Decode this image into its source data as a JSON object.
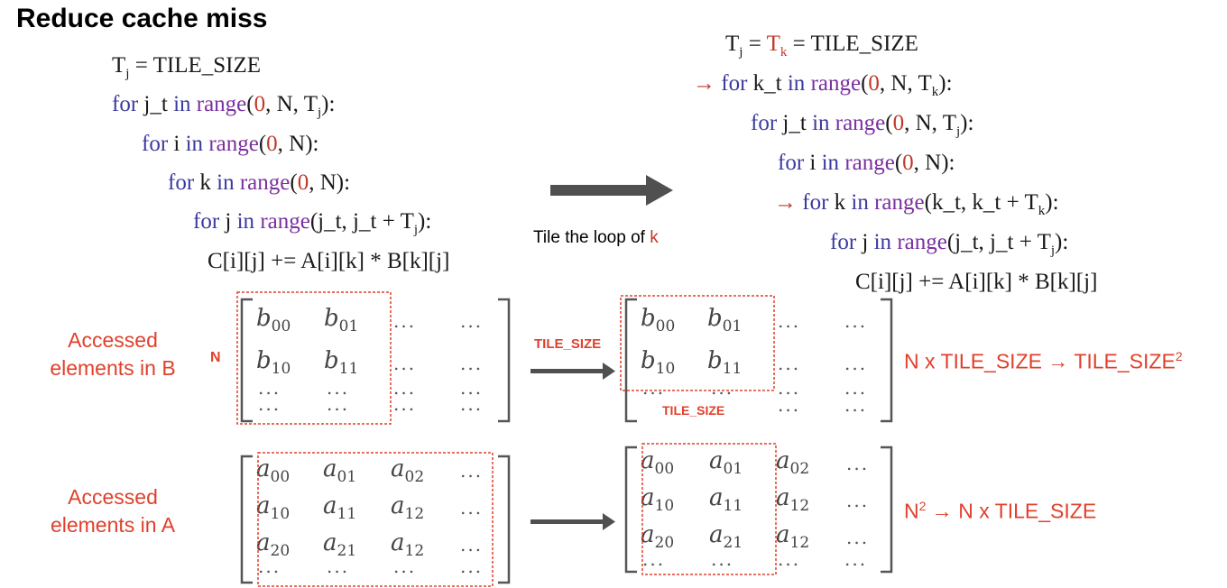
{
  "title": "Reduce cache miss",
  "left_code": {
    "line1": "Tj = TILE_SIZE",
    "line2": "for j_t in range(0, N, Tj):",
    "line3": "for i in range(0, N):",
    "line4": "for k in range(0, N):",
    "line5": "for j in range(j_t, j_t + Tj):",
    "line6": "C[i][j] += A[i][k] * B[k][j]"
  },
  "right_code": {
    "line1": "Tj = Tk = TILE_SIZE",
    "line2": "for k_t in range(0, N, Tk):",
    "line3": "for j_t in range(0, N, Tj):",
    "line4": "for i in range(0, N):",
    "line5": "for k in range(k_t, k_t + Tk):",
    "line6": "for j in range(j_t, j_t + Tj):",
    "line7": "C[i][j] += A[i][k] * B[k][j]"
  },
  "tile_caption_prefix": "Tile the loop of ",
  "tile_caption_var": "k",
  "label_b": "Accessed elements in B",
  "label_a": "Accessed elements in A",
  "n_label": "N",
  "tile_size_label": "TILE_SIZE",
  "b_change": "N x TILE_SIZE → TILE_SIZE",
  "b_change_sup": "2",
  "a_change_prefix": "N",
  "a_change_sup": "2",
  "a_change_suffix": " → N x TILE_SIZE",
  "matrix_b": [
    [
      "b",
      "00"
    ],
    [
      "b",
      "01"
    ],
    [
      "b",
      "10"
    ],
    [
      "b",
      "11"
    ]
  ],
  "matrix_a": [
    [
      "a",
      "00"
    ],
    [
      "a",
      "01"
    ],
    [
      "a",
      "02"
    ],
    [
      "a",
      "10"
    ],
    [
      "a",
      "11"
    ],
    [
      "a",
      "12"
    ],
    [
      "a",
      "20"
    ],
    [
      "a",
      "21"
    ],
    [
      "a",
      "12"
    ]
  ],
  "dots": "...",
  "colors": {
    "accent": "#e0402c",
    "keyword": "#3a3a9e",
    "function": "#7a2fa0",
    "arrow": "#505050"
  }
}
